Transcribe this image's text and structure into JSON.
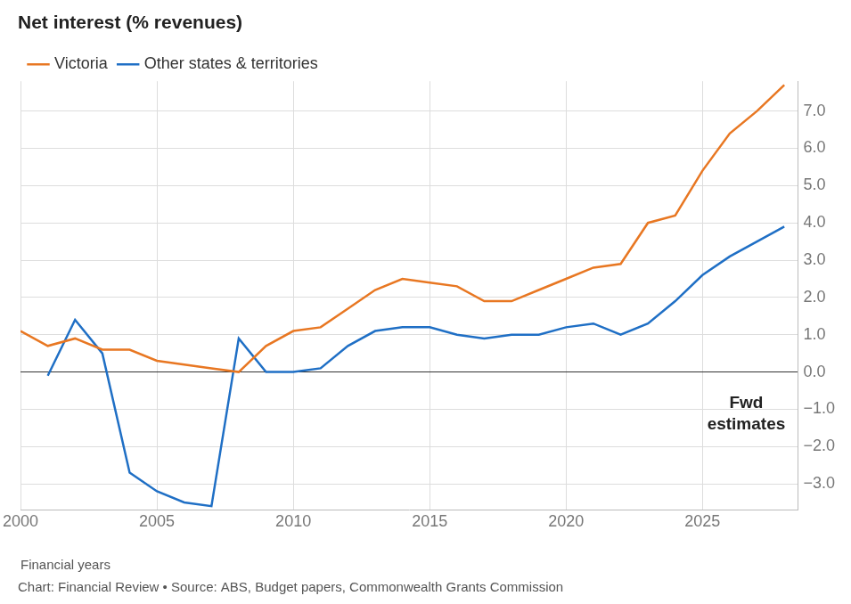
{
  "chart_data": {
    "type": "line",
    "title": "Net interest (% revenues)",
    "x_label": "Financial years",
    "source": "Chart: Financial Review • Source: ABS, Budget papers, Commonwealth Grants Commission",
    "annotations": [
      "Fwd estimates"
    ],
    "x": [
      2000,
      2001,
      2002,
      2003,
      2004,
      2005,
      2006,
      2007,
      2008,
      2009,
      2010,
      2011,
      2012,
      2013,
      2014,
      2015,
      2016,
      2017,
      2018,
      2019,
      2020,
      2021,
      2022,
      2023,
      2024,
      2025,
      2026,
      2027,
      2028
    ],
    "series": [
      {
        "name": "Victoria",
        "color": "#e87722",
        "values": [
          1.1,
          0.7,
          0.9,
          0.6,
          0.6,
          0.3,
          0.2,
          0.1,
          0.0,
          0.7,
          1.1,
          1.2,
          1.7,
          2.2,
          2.5,
          2.4,
          2.3,
          1.9,
          1.9,
          2.2,
          2.5,
          2.8,
          2.9,
          4.0,
          4.2,
          5.4,
          6.4,
          7.0,
          7.7
        ]
      },
      {
        "name": "Other states & territories",
        "color": "#1f6fc5",
        "values": [
          null,
          -0.1,
          1.4,
          0.5,
          -2.7,
          -3.2,
          -3.5,
          -3.6,
          0.9,
          0.0,
          0.0,
          0.1,
          0.7,
          1.1,
          1.2,
          1.2,
          1.0,
          0.9,
          1.0,
          1.0,
          1.2,
          1.3,
          1.0,
          1.3,
          1.9,
          2.6,
          3.1,
          3.5,
          3.9
        ]
      }
    ],
    "xlim": [
      2000,
      2028.5
    ],
    "xticks": [
      2000,
      2005,
      2010,
      2015,
      2020,
      2025
    ],
    "ylim": [
      -3.7,
      7.8
    ],
    "yticks": [
      {
        "value": -3,
        "label": "−3.0"
      },
      {
        "value": -2,
        "label": "−2.0"
      },
      {
        "value": -1,
        "label": "−1.0"
      },
      {
        "value": 0,
        "label": "0.0"
      },
      {
        "value": 1,
        "label": "1.0"
      },
      {
        "value": 2,
        "label": "2.0"
      },
      {
        "value": 3,
        "label": "3.0"
      },
      {
        "value": 4,
        "label": "4.0"
      },
      {
        "value": 5,
        "label": "5.0"
      },
      {
        "value": 6,
        "label": "6.0"
      },
      {
        "value": 7,
        "label": "7.0"
      }
    ],
    "grid": true,
    "legend": "top-left"
  }
}
